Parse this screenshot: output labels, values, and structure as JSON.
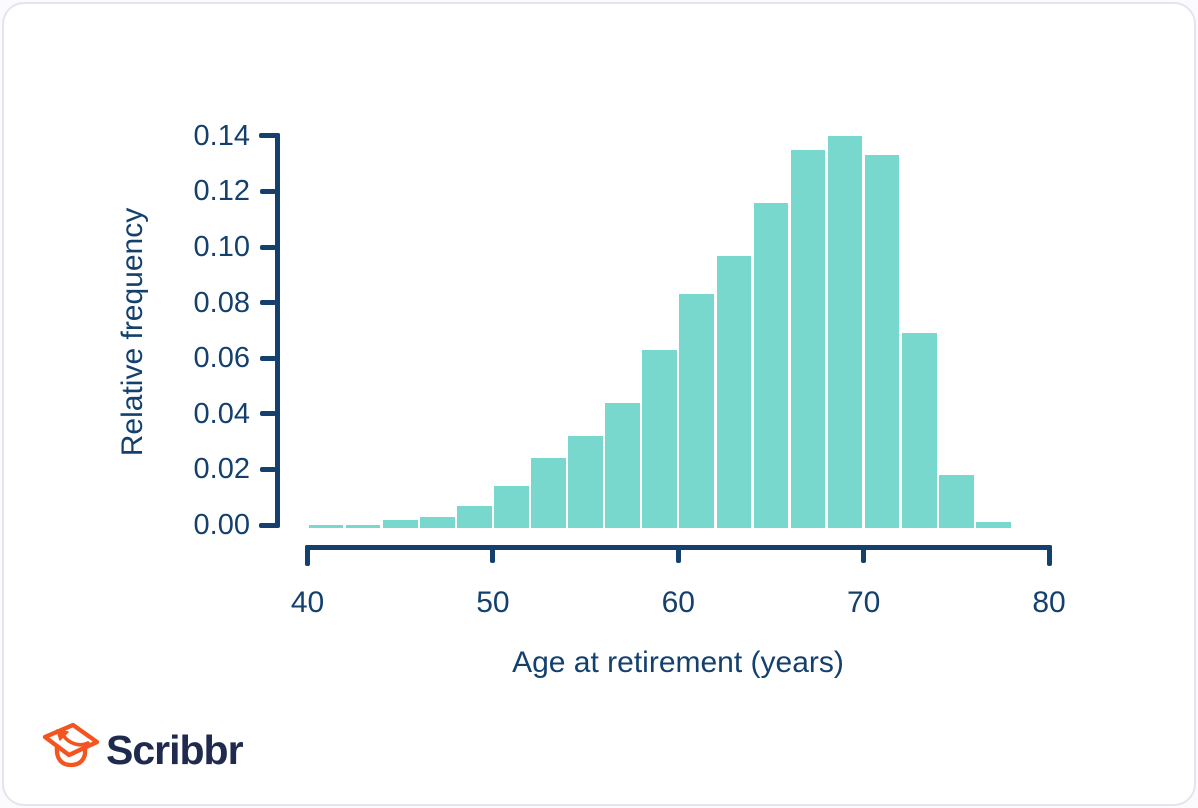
{
  "chart_data": {
    "type": "bar",
    "subtype": "histogram",
    "title": "",
    "xlabel": "Age at retirement (years)",
    "ylabel": "Relative frequency",
    "bin_start": 40,
    "bin_width": 2,
    "bin_edges": [
      40,
      42,
      44,
      46,
      48,
      50,
      52,
      54,
      56,
      58,
      60,
      62,
      64,
      66,
      68,
      70,
      72,
      74,
      76,
      78
    ],
    "values": [
      0.001,
      0.001,
      0.003,
      0.004,
      0.008,
      0.015,
      0.025,
      0.033,
      0.045,
      0.064,
      0.084,
      0.098,
      0.117,
      0.136,
      0.141,
      0.134,
      0.07,
      0.019,
      0.002
    ],
    "x_ticks": [
      40,
      50,
      60,
      70,
      80
    ],
    "x_tick_labels": [
      "40",
      "50",
      "60",
      "70",
      "80"
    ],
    "y_ticks": [
      0,
      0.02,
      0.04,
      0.06,
      0.08,
      0.1,
      0.12,
      0.14
    ],
    "y_tick_labels": [
      "0.00",
      "0.02",
      "0.04",
      "0.06",
      "0.08",
      "0.10",
      "0.12",
      "0.14"
    ],
    "xlim": [
      40,
      80
    ],
    "ylim": [
      0,
      0.14
    ],
    "grid": false,
    "legend": null,
    "bar_color": "#79d8ce",
    "axis_color": "#14406e"
  },
  "branding": {
    "logo_text": "Scribbr",
    "logo_icon": "graduation-cap-icon",
    "icon_color": "#f4541f",
    "text_color": "#1f2a4e"
  }
}
